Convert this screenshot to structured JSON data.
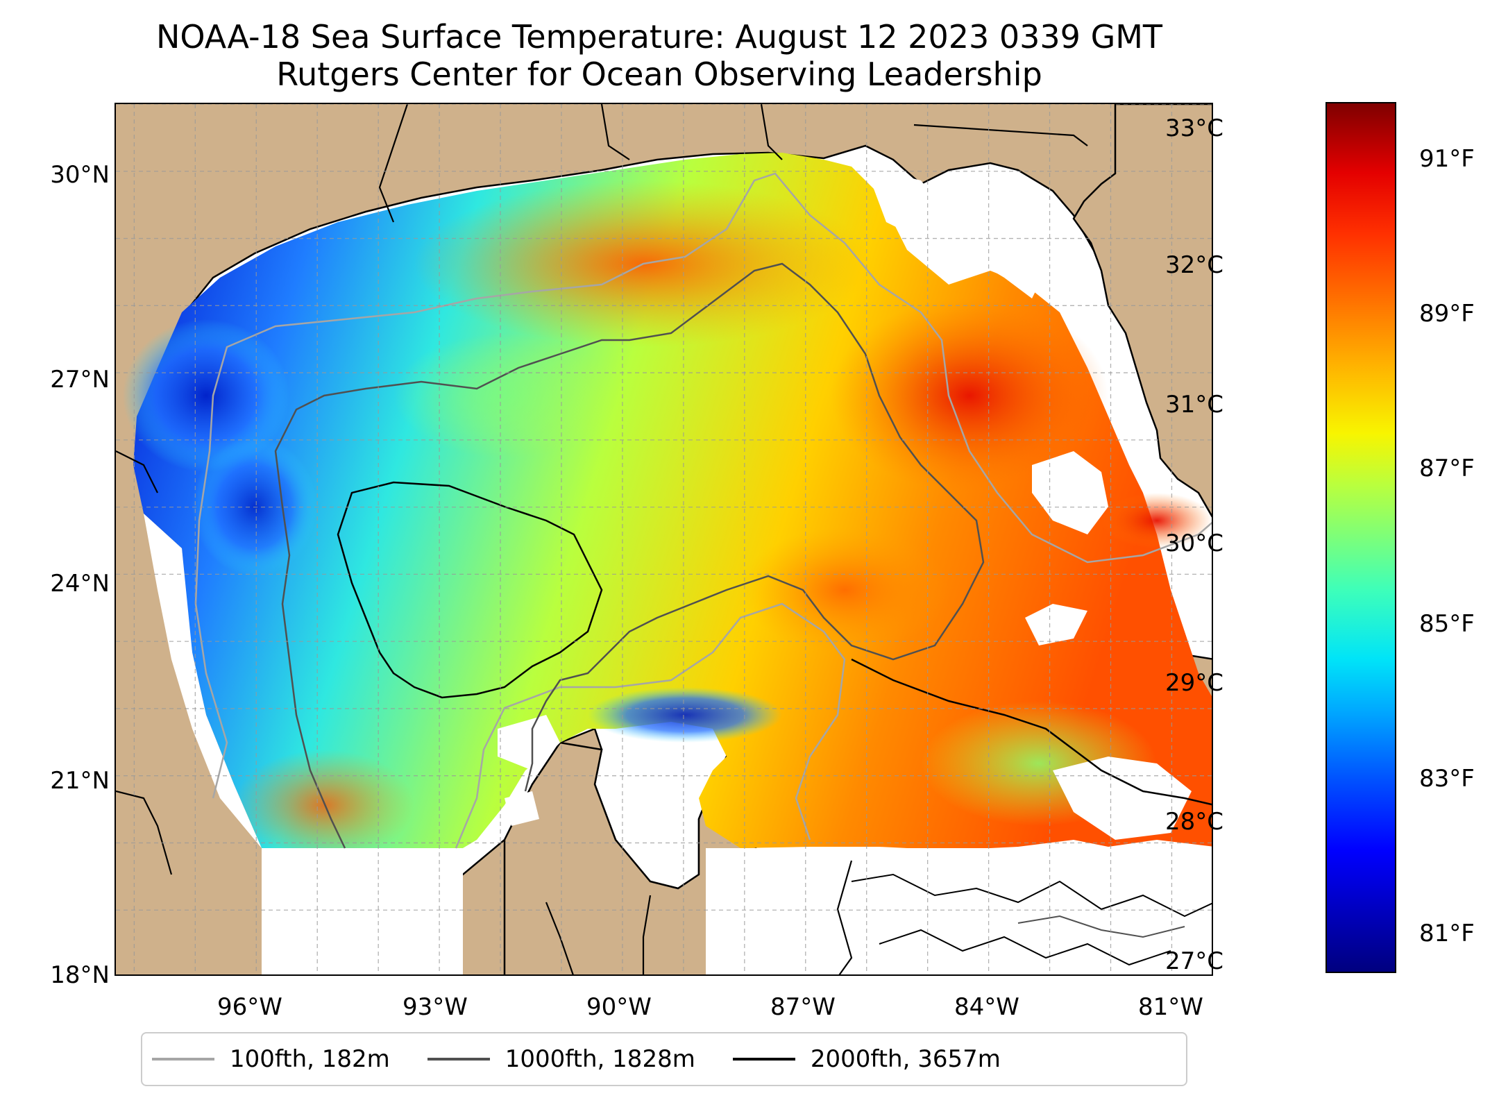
{
  "title": "NOAA-18 Sea Surface Temperature: August 12 2023 0339 GMT",
  "subtitle": "Rutgers Center for Ocean Observing Leadership",
  "map": {
    "lat_ticks": [
      "30°N",
      "27°N",
      "24°N",
      "21°N",
      "18°N"
    ],
    "lon_ticks": [
      "96°W",
      "93°W",
      "90°W",
      "87°W",
      "84°W",
      "81°W"
    ],
    "extent": {
      "lon_min": -98.3,
      "lon_max": -80.3,
      "lat_min": 18.0,
      "lat_max": 31.0
    },
    "land_color": "#cfb18b",
    "gridlines": true
  },
  "legend": [
    {
      "label": "100fth, 182m",
      "color": "#a6a6a6"
    },
    {
      "label": "1000fth, 1828m",
      "color": "#505050"
    },
    {
      "label": "2000fth, 3657m",
      "color": "#000000"
    }
  ],
  "colorbar": {
    "celsius": [
      "33°C",
      "32°C",
      "31°C",
      "30°C",
      "29°C",
      "28°C",
      "27°C"
    ],
    "fahrenheit": [
      "91°F",
      "89°F",
      "87°F",
      "85°F",
      "83°F",
      "81°F"
    ],
    "colormap": "jet"
  }
}
